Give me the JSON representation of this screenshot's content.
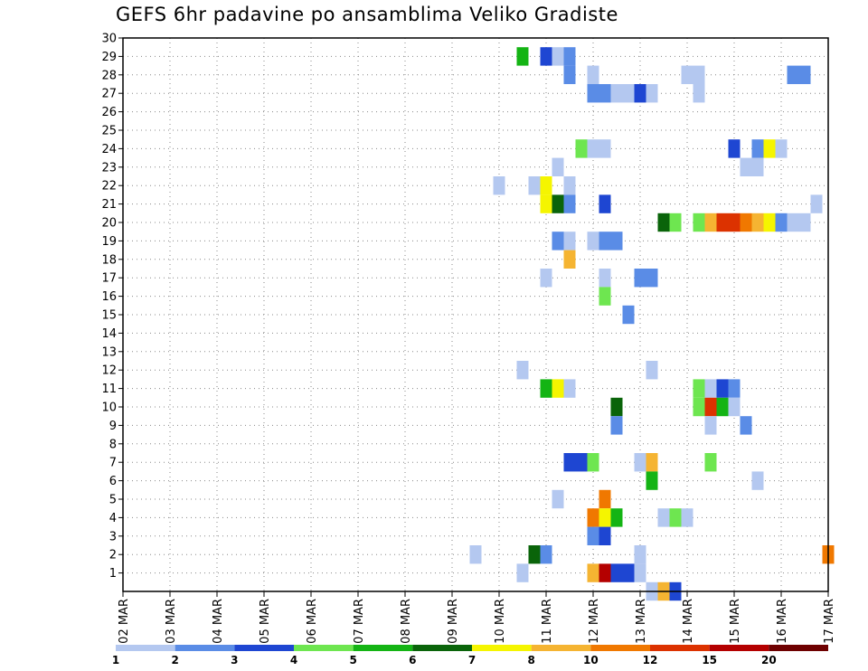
{
  "chart_data": {
    "type": "heatmap",
    "title": "GEFS 6hr padavine po ansamblima Veliko Gradiste",
    "xlabel": "",
    "ylabel": "",
    "x_tick_labels": [
      "02 MAR",
      "03 MAR",
      "04 MAR",
      "05 MAR",
      "06 MAR",
      "07 MAR",
      "08 MAR",
      "09 MAR",
      "10 MAR",
      "11 MAR",
      "12 MAR",
      "13 MAR",
      "14 MAR",
      "15 MAR",
      "16 MAR",
      "17 MAR"
    ],
    "x_range_days": [
      0,
      15
    ],
    "x_step_days": 0.25,
    "y_tick_labels": [
      "1",
      "2",
      "3",
      "4",
      "5",
      "6",
      "7",
      "8",
      "9",
      "10",
      "11",
      "12",
      "13",
      "14",
      "15",
      "16",
      "17",
      "18",
      "19",
      "20",
      "21",
      "22",
      "23",
      "24",
      "25",
      "26",
      "27",
      "28",
      "29",
      "30"
    ],
    "ylim": [
      0,
      30
    ],
    "grid": true,
    "legend_position": "bottom",
    "levels": [
      {
        "min": 1,
        "max": 2,
        "color": "#b4c8f0"
      },
      {
        "min": 2,
        "max": 3,
        "color": "#5a8ce6"
      },
      {
        "min": 3,
        "max": 4,
        "color": "#1e46d2"
      },
      {
        "min": 4,
        "max": 5,
        "color": "#6ee650"
      },
      {
        "min": 5,
        "max": 6,
        "color": "#14b414"
      },
      {
        "min": 6,
        "max": 7,
        "color": "#0a640a"
      },
      {
        "min": 7,
        "max": 8,
        "color": "#f5f500"
      },
      {
        "min": 8,
        "max": 10,
        "color": "#f5b432"
      },
      {
        "min": 10,
        "max": 12,
        "color": "#f07800"
      },
      {
        "min": 12,
        "max": 15,
        "color": "#dc3200"
      },
      {
        "min": 15,
        "max": 20,
        "color": "#b40000"
      },
      {
        "min": 20,
        "max": null,
        "color": "#6e0000"
      }
    ],
    "legend_labels": [
      "1",
      "2",
      "3",
      "4",
      "5",
      "6",
      "7",
      "8",
      "10",
      "12",
      "15",
      "20"
    ],
    "cells": [
      {
        "x": 8.5,
        "y": 29,
        "value": 5.5
      },
      {
        "x": 9,
        "y": 29,
        "value": 3.5
      },
      {
        "x": 9.25,
        "y": 29,
        "value": 1.5
      },
      {
        "x": 9.5,
        "y": 29,
        "value": 2.5
      },
      {
        "x": 9.5,
        "y": 28,
        "value": 2.5
      },
      {
        "x": 10,
        "y": 28,
        "value": 1.5
      },
      {
        "x": 12,
        "y": 28,
        "value": 1.5
      },
      {
        "x": 12.25,
        "y": 28,
        "value": 1.5
      },
      {
        "x": 14.25,
        "y": 28,
        "value": 2.5
      },
      {
        "x": 14.5,
        "y": 28,
        "value": 2.5
      },
      {
        "x": 10,
        "y": 27,
        "value": 2.5
      },
      {
        "x": 10.25,
        "y": 27,
        "value": 2.5
      },
      {
        "x": 10.5,
        "y": 27,
        "value": 1.5
      },
      {
        "x": 10.75,
        "y": 27,
        "value": 1.5
      },
      {
        "x": 11,
        "y": 27,
        "value": 3.5
      },
      {
        "x": 11.25,
        "y": 27,
        "value": 1.5
      },
      {
        "x": 12.25,
        "y": 27,
        "value": 1.5
      },
      {
        "x": 9.75,
        "y": 24,
        "value": 4.5
      },
      {
        "x": 10,
        "y": 24,
        "value": 1.5
      },
      {
        "x": 10.25,
        "y": 24,
        "value": 1.5
      },
      {
        "x": 13,
        "y": 24,
        "value": 3.5
      },
      {
        "x": 13.5,
        "y": 24,
        "value": 2.5
      },
      {
        "x": 13.75,
        "y": 24,
        "value": 7.5
      },
      {
        "x": 14,
        "y": 24,
        "value": 1.5
      },
      {
        "x": 9.25,
        "y": 23,
        "value": 1.5
      },
      {
        "x": 13.25,
        "y": 23,
        "value": 1.5
      },
      {
        "x": 13.5,
        "y": 23,
        "value": 1.5
      },
      {
        "x": 8,
        "y": 22,
        "value": 1.5
      },
      {
        "x": 8.75,
        "y": 22,
        "value": 1.5
      },
      {
        "x": 9,
        "y": 22,
        "value": 7.5
      },
      {
        "x": 9.5,
        "y": 22,
        "value": 1.5
      },
      {
        "x": 9,
        "y": 21,
        "value": 7.5
      },
      {
        "x": 9.25,
        "y": 21,
        "value": 6.5
      },
      {
        "x": 9.5,
        "y": 21,
        "value": 2.5
      },
      {
        "x": 10.25,
        "y": 21,
        "value": 3.5
      },
      {
        "x": 14.75,
        "y": 21,
        "value": 1.5
      },
      {
        "x": 11.5,
        "y": 20,
        "value": 6.5
      },
      {
        "x": 11.75,
        "y": 20,
        "value": 4.5
      },
      {
        "x": 12.25,
        "y": 20,
        "value": 4.5
      },
      {
        "x": 12.5,
        "y": 20,
        "value": 9
      },
      {
        "x": 12.75,
        "y": 20,
        "value": 13.5
      },
      {
        "x": 13,
        "y": 20,
        "value": 13.5
      },
      {
        "x": 13.25,
        "y": 20,
        "value": 11
      },
      {
        "x": 13.5,
        "y": 20,
        "value": 9
      },
      {
        "x": 13.75,
        "y": 20,
        "value": 7.5
      },
      {
        "x": 14,
        "y": 20,
        "value": 2.5
      },
      {
        "x": 14.25,
        "y": 20,
        "value": 1.5
      },
      {
        "x": 14.5,
        "y": 20,
        "value": 1.5
      },
      {
        "x": 9.25,
        "y": 19,
        "value": 2.5
      },
      {
        "x": 9.5,
        "y": 19,
        "value": 1.5
      },
      {
        "x": 10,
        "y": 19,
        "value": 1.5
      },
      {
        "x": 10.25,
        "y": 19,
        "value": 2.5
      },
      {
        "x": 10.5,
        "y": 19,
        "value": 2.5
      },
      {
        "x": 9.5,
        "y": 18,
        "value": 9
      },
      {
        "x": 9,
        "y": 17,
        "value": 1.5
      },
      {
        "x": 10.25,
        "y": 17,
        "value": 1.5
      },
      {
        "x": 11,
        "y": 17,
        "value": 2.5
      },
      {
        "x": 11.25,
        "y": 17,
        "value": 2.5
      },
      {
        "x": 10.25,
        "y": 16,
        "value": 4.5
      },
      {
        "x": 10.75,
        "y": 15,
        "value": 2.5
      },
      {
        "x": 8.5,
        "y": 12,
        "value": 1.5
      },
      {
        "x": 11.25,
        "y": 12,
        "value": 1.5
      },
      {
        "x": 9,
        "y": 11,
        "value": 5.5
      },
      {
        "x": 9.25,
        "y": 11,
        "value": 7.5
      },
      {
        "x": 9.5,
        "y": 11,
        "value": 1.5
      },
      {
        "x": 12.25,
        "y": 11,
        "value": 4.5
      },
      {
        "x": 12.5,
        "y": 11,
        "value": 1.5
      },
      {
        "x": 12.75,
        "y": 11,
        "value": 3.5
      },
      {
        "x": 13,
        "y": 11,
        "value": 2.5
      },
      {
        "x": 10.5,
        "y": 10,
        "value": 6.5
      },
      {
        "x": 12.25,
        "y": 10,
        "value": 4.5
      },
      {
        "x": 12.5,
        "y": 10,
        "value": 13.5
      },
      {
        "x": 12.75,
        "y": 10,
        "value": 5.5
      },
      {
        "x": 13,
        "y": 10,
        "value": 1.5
      },
      {
        "x": 10.5,
        "y": 9,
        "value": 2.5
      },
      {
        "x": 12.5,
        "y": 9,
        "value": 1.5
      },
      {
        "x": 13.25,
        "y": 9,
        "value": 2.5
      },
      {
        "x": 9.5,
        "y": 7,
        "value": 3.5
      },
      {
        "x": 9.75,
        "y": 7,
        "value": 3.5
      },
      {
        "x": 10,
        "y": 7,
        "value": 4.5
      },
      {
        "x": 11,
        "y": 7,
        "value": 1.5
      },
      {
        "x": 11.25,
        "y": 7,
        "value": 9
      },
      {
        "x": 12.5,
        "y": 7,
        "value": 4.5
      },
      {
        "x": 11.25,
        "y": 6,
        "value": 5.5
      },
      {
        "x": 13.5,
        "y": 6,
        "value": 1.5
      },
      {
        "x": 9.25,
        "y": 5,
        "value": 1.5
      },
      {
        "x": 10.25,
        "y": 5,
        "value": 11
      },
      {
        "x": 10,
        "y": 4,
        "value": 11
      },
      {
        "x": 10.25,
        "y": 4,
        "value": 7.5
      },
      {
        "x": 10.5,
        "y": 4,
        "value": 5.5
      },
      {
        "x": 11.5,
        "y": 4,
        "value": 1.5
      },
      {
        "x": 11.75,
        "y": 4,
        "value": 4.5
      },
      {
        "x": 12,
        "y": 4,
        "value": 1.5
      },
      {
        "x": 10,
        "y": 3,
        "value": 2.5
      },
      {
        "x": 10.25,
        "y": 3,
        "value": 3.5
      },
      {
        "x": 7.5,
        "y": 2,
        "value": 1.5
      },
      {
        "x": 8.75,
        "y": 2,
        "value": 6.5
      },
      {
        "x": 9,
        "y": 2,
        "value": 2.5
      },
      {
        "x": 11,
        "y": 2,
        "value": 1.5
      },
      {
        "x": 15,
        "y": 2,
        "value": 11
      },
      {
        "x": 8.5,
        "y": 1,
        "value": 1.5
      },
      {
        "x": 10,
        "y": 1,
        "value": 9
      },
      {
        "x": 10.25,
        "y": 1,
        "value": 17
      },
      {
        "x": 10.5,
        "y": 1,
        "value": 3.5
      },
      {
        "x": 10.75,
        "y": 1,
        "value": 3.5
      },
      {
        "x": 11,
        "y": 1,
        "value": 1.5
      },
      {
        "x": 11.25,
        "y": 0,
        "value": 1.5
      },
      {
        "x": 11.5,
        "y": 0,
        "value": 9
      },
      {
        "x": 11.75,
        "y": 0,
        "value": 3.5
      }
    ]
  }
}
